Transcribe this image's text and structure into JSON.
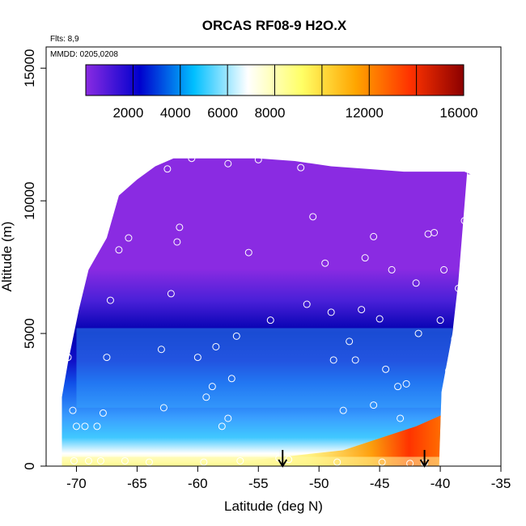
{
  "chart_data": {
    "type": "heatmap",
    "title": "ORCAS RF08-9 H2O.X",
    "annotations": [
      "Flts: 8,9",
      "MMDD: 0205,0208"
    ],
    "xlabel": "Latitude (deg N)",
    "ylabel": "Altitude (m)",
    "xlim": [
      -72.5,
      -35
    ],
    "ylim": [
      0,
      15800
    ],
    "x_ticks": [
      -70,
      -65,
      -60,
      -55,
      -50,
      -45,
      -40,
      -35
    ],
    "x_tick_labels": [
      "-70",
      "-65",
      "-60",
      "-55",
      "-50",
      "-45",
      "-40",
      "-35"
    ],
    "y_ticks": [
      0,
      5000,
      10000,
      15000
    ],
    "y_tick_labels": [
      "0",
      "5000",
      "10000",
      "15000"
    ],
    "colorbar": {
      "range": [
        0,
        16000
      ],
      "ticks": [
        2000,
        4000,
        6000,
        8000,
        12000,
        16000
      ],
      "tick_labels": [
        "2000",
        "4000",
        "6000",
        "8000",
        "12000",
        "16000"
      ],
      "colors": [
        "#8a2be2",
        "#0000cd",
        "#00bfff",
        "#ffffff",
        "#ffff66",
        "#ffa500",
        "#ff3300",
        "#8b0000"
      ]
    },
    "domain_boundary": {
      "lats": [
        -71.2,
        -71.2,
        -70.7,
        -69.8,
        -69.0,
        -67.5,
        -66.5,
        -65.0,
        -63.5,
        -62.0,
        -59.0,
        -55.0,
        -52.0,
        -49.0,
        -46.0,
        -43.0,
        -40.0,
        -38.0,
        -37.5
      ],
      "top_alt": [
        1600,
        2600,
        3900,
        5900,
        7400,
        8600,
        10200,
        10800,
        11300,
        11600,
        11600,
        11600,
        11500,
        11300,
        11200,
        11100,
        11100,
        11100,
        11000
      ],
      "bottom_alt": [
        0,
        0,
        0,
        0,
        0,
        0,
        0,
        0,
        0,
        0,
        0,
        0,
        0,
        0,
        0,
        0,
        0,
        0,
        0
      ],
      "right_edge_lats": [
        -40.1,
        -39.9,
        -39.0,
        -38.5,
        -37.8
      ],
      "right_edge_alts": [
        0,
        2800,
        5000,
        7000,
        11000
      ]
    },
    "sample_points": {
      "lat": [
        -70.7,
        -70.3,
        -70.0,
        -69.3,
        -68.3,
        -67.8,
        -67.5,
        -67.2,
        -66.5,
        -65.7,
        -63.0,
        -62.8,
        -62.2,
        -61.7,
        -61.5,
        -60.0,
        -59.3,
        -58.8,
        -58.5,
        -58.0,
        -57.5,
        -57.2,
        -56.8,
        -55.8,
        -55.0,
        -53.3,
        -51.5,
        -50.5,
        -49.5,
        -49.0,
        -48.8,
        -48.0,
        -47.0,
        -46.5,
        -46.2,
        -45.5,
        -45.0,
        -44.5,
        -44.0,
        -43.3,
        -42.8,
        -42.0,
        -41.8,
        -41.0,
        -40.5,
        -40.0,
        -39.7,
        -39.3,
        -39.0,
        -38.8,
        -38.5,
        -38.0,
        -37.5,
        -62.5,
        -60.5,
        -57.5,
        -54.0,
        -51.0,
        -47.5,
        -45.5,
        -43.5,
        -70.2,
        -69.0,
        -68.0,
        -66.0,
        -64.0,
        -59.5,
        -56.5,
        -52.5,
        -48.5,
        -44.8,
        -42.5,
        -41.3
      ],
      "alt": [
        4100,
        2100,
        1500,
        1500,
        1500,
        2000,
        4100,
        6250,
        8150,
        8600,
        4400,
        2200,
        6500,
        8450,
        9000,
        4100,
        2600,
        3000,
        4500,
        1500,
        1800,
        3300,
        4900,
        8050,
        11550,
        300,
        11250,
        9400,
        7650,
        5800,
        4000,
        2100,
        4000,
        5900,
        7850,
        8650,
        5550,
        3650,
        7400,
        1800,
        3100,
        6900,
        5000,
        8750,
        8800,
        5500,
        7400,
        3600,
        1800,
        4800,
        6700,
        9250,
        11000,
        11200,
        11600,
        11400,
        5500,
        6100,
        4700,
        2300,
        3000,
        200,
        200,
        200,
        200,
        150,
        150,
        200,
        250,
        150,
        150,
        100,
        120
      ]
    },
    "arrow_lats": [
      -53,
      -41.3
    ]
  }
}
